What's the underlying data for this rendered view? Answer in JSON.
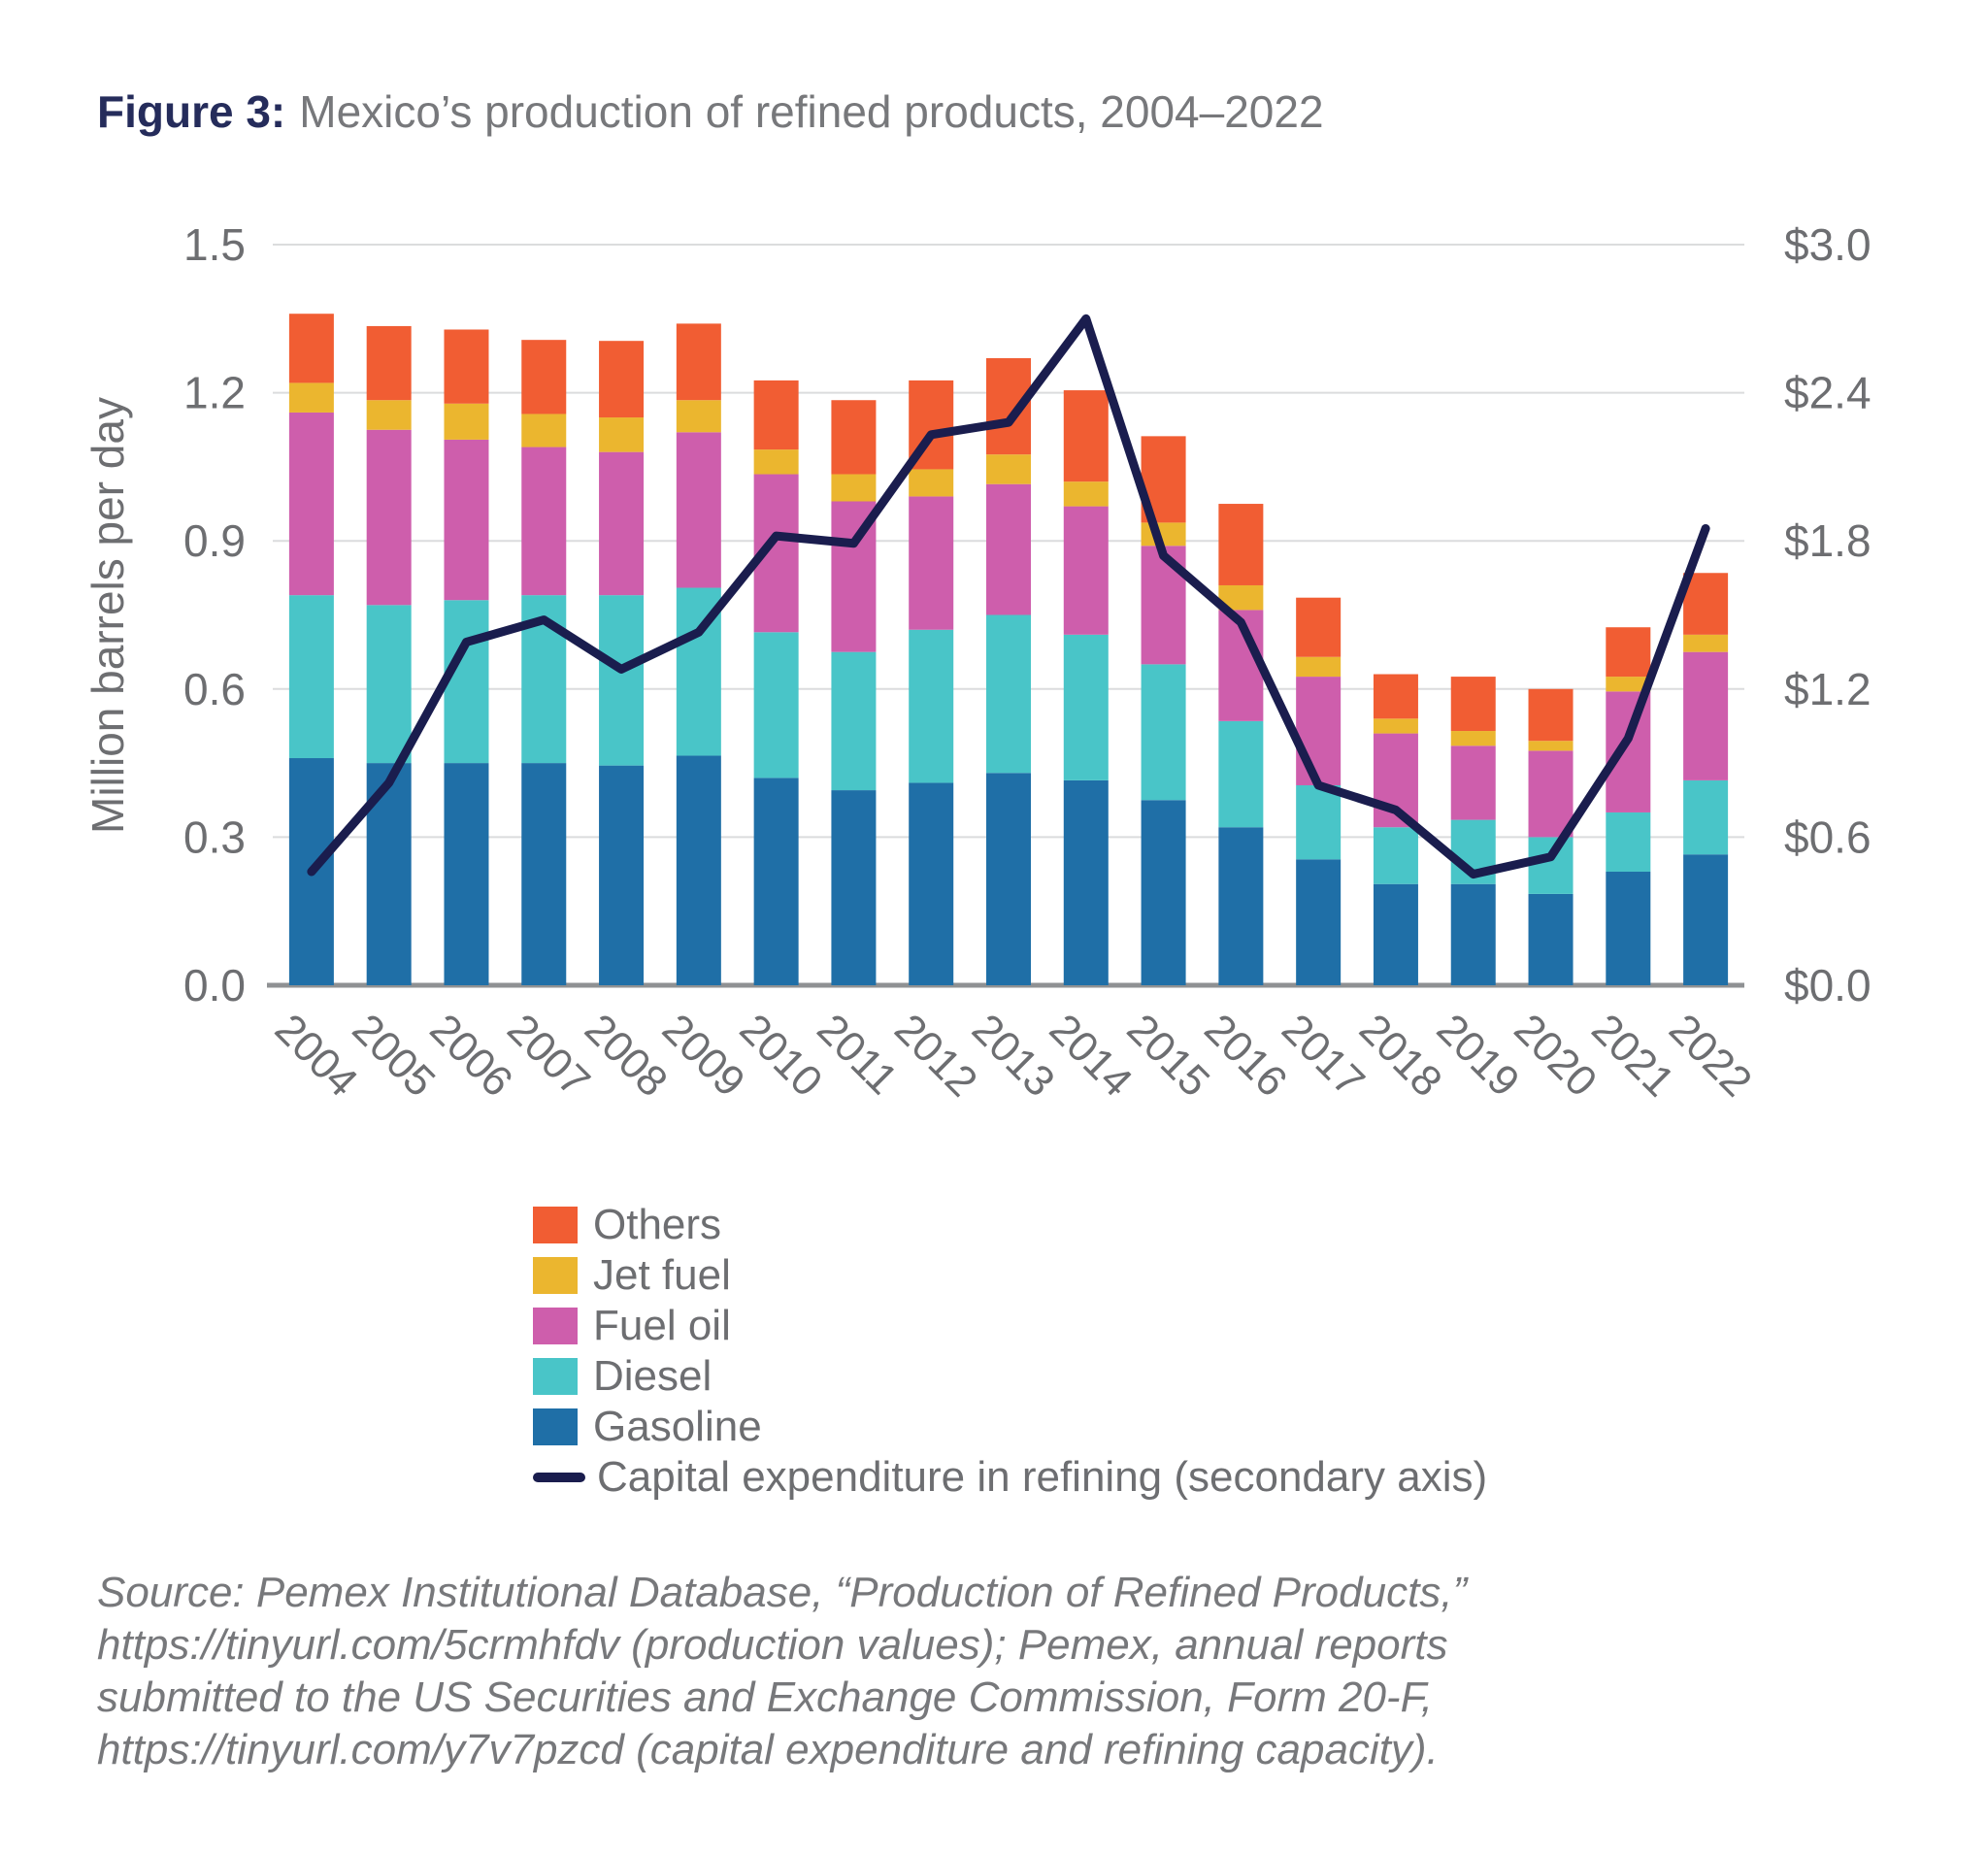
{
  "figure": {
    "label": "Figure 3:",
    "title": "Mexico’s production of refined products, 2004–2022"
  },
  "chart_data": {
    "type": "bar",
    "stacked": true,
    "title": "Mexico’s production of refined products, 2004–2022",
    "ylabel": "Million barrels per day",
    "xlabel": "",
    "grid": true,
    "legend_position": "bottom-left",
    "categories": [
      "2004",
      "2005",
      "2006",
      "2007",
      "2008",
      "2009",
      "2010",
      "2011",
      "2012",
      "2013",
      "2014",
      "2015",
      "2016",
      "2017",
      "2018",
      "2019",
      "2020",
      "2021",
      "2022"
    ],
    "series": [
      {
        "name": "Gasoline",
        "color": "#1F6FA7",
        "values": [
          0.46,
          0.45,
          0.45,
          0.45,
          0.445,
          0.465,
          0.42,
          0.395,
          0.41,
          0.43,
          0.415,
          0.375,
          0.32,
          0.255,
          0.205,
          0.205,
          0.185,
          0.23,
          0.265
        ]
      },
      {
        "name": "Diesel",
        "color": "#49C5C8",
        "values": [
          0.33,
          0.32,
          0.33,
          0.34,
          0.345,
          0.34,
          0.295,
          0.28,
          0.31,
          0.32,
          0.295,
          0.275,
          0.215,
          0.15,
          0.115,
          0.13,
          0.115,
          0.12,
          0.15
        ]
      },
      {
        "name": "Fuel oil",
        "color": "#CE5EAC",
        "values": [
          0.37,
          0.355,
          0.325,
          0.3,
          0.29,
          0.315,
          0.32,
          0.305,
          0.27,
          0.265,
          0.26,
          0.24,
          0.225,
          0.22,
          0.19,
          0.15,
          0.175,
          0.245,
          0.26
        ]
      },
      {
        "name": "Jet fuel",
        "color": "#EBB62F",
        "values": [
          0.06,
          0.06,
          0.073,
          0.067,
          0.07,
          0.065,
          0.05,
          0.055,
          0.055,
          0.06,
          0.05,
          0.047,
          0.05,
          0.04,
          0.03,
          0.03,
          0.02,
          0.03,
          0.035
        ]
      },
      {
        "name": "Others",
        "color": "#F15D33",
        "values": [
          0.14,
          0.15,
          0.15,
          0.15,
          0.155,
          0.155,
          0.14,
          0.15,
          0.18,
          0.195,
          0.185,
          0.175,
          0.165,
          0.12,
          0.09,
          0.11,
          0.105,
          0.1,
          0.125
        ]
      }
    ],
    "line_series": {
      "name": "Capital expenditure in refining (secondary axis)",
      "color": "#1A1D4E",
      "axis": "secondary",
      "values": [
        0.46,
        0.82,
        1.39,
        1.48,
        1.28,
        1.43,
        1.82,
        1.79,
        2.23,
        2.28,
        2.7,
        1.74,
        1.47,
        0.81,
        0.71,
        0.45,
        0.52,
        1.0,
        1.85
      ]
    },
    "y_left": {
      "min": 0,
      "max": 1.5,
      "tick_step": 0.3,
      "ticks": [
        "0.0",
        "0.3",
        "0.6",
        "0.9",
        "1.2",
        "1.5"
      ]
    },
    "y_right": {
      "min": 0,
      "max": 3.0,
      "tick_step": 0.6,
      "ticks": [
        "$0.0",
        "$0.6",
        "$1.2",
        "$1.8",
        "$2.4",
        "$3.0"
      ]
    }
  },
  "legend": {
    "items": [
      {
        "label": "Others",
        "color": "#F15D33",
        "type": "swatch"
      },
      {
        "label": "Jet fuel",
        "color": "#EBB62F",
        "type": "swatch"
      },
      {
        "label": "Fuel oil",
        "color": "#CE5EAC",
        "type": "swatch"
      },
      {
        "label": "Diesel",
        "color": "#49C5C8",
        "type": "swatch"
      },
      {
        "label": "Gasoline",
        "color": "#1F6FA7",
        "type": "swatch"
      },
      {
        "label": "Capital expenditure in refining (secondary axis)",
        "color": "#1A1D4E",
        "type": "line"
      }
    ]
  },
  "source": {
    "lines": [
      "Source: Pemex Institutional Database, “Production of Refined Products,”",
      "https://tinyurl.com/5crmhfdv (production values); Pemex, annual reports",
      "submitted to the US Securities and Exchange Commission, Form 20-F,",
      "https://tinyurl.com/y7v7pzcd (capital expenditure and refining capacity)."
    ]
  },
  "colors": {
    "title_navy": "#252C5B",
    "muted_gray": "#77787B",
    "tick_gray": "#6D6E71",
    "gridline": "#DBDCDD",
    "axis_line": "#8F9193",
    "capex_line": "#1A1D4E"
  }
}
